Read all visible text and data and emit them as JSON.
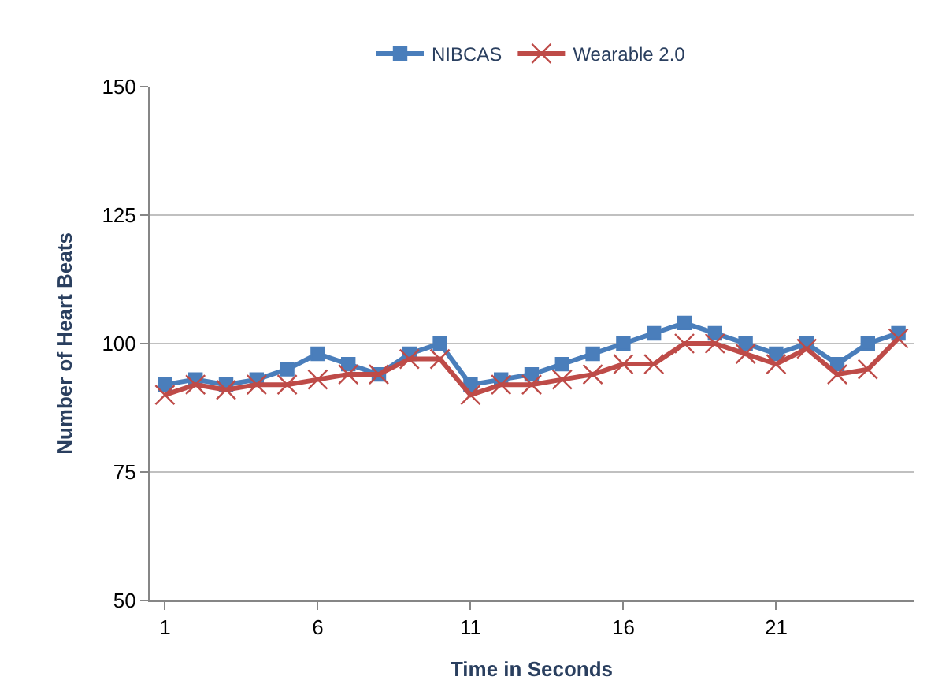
{
  "chart_data": {
    "type": "line",
    "xlabel": "Time in Seconds",
    "ylabel": "Number of Heart Beats",
    "x": [
      1,
      2,
      3,
      4,
      5,
      6,
      7,
      8,
      9,
      10,
      11,
      12,
      13,
      14,
      15,
      16,
      17,
      18,
      19,
      20,
      21,
      22,
      23,
      24,
      25
    ],
    "series": [
      {
        "name": "NIBCAS",
        "color": "#4a7ebb",
        "marker": "square",
        "values": [
          92,
          93,
          92,
          93,
          95,
          98,
          96,
          94,
          98,
          100,
          92,
          93,
          94,
          96,
          98,
          100,
          102,
          104,
          102,
          100,
          98,
          100,
          96,
          100,
          102
        ]
      },
      {
        "name": "Wearable 2.0",
        "color": "#be4b48",
        "marker": "cross",
        "values": [
          90,
          92,
          91,
          92,
          92,
          93,
          94,
          94,
          97,
          97,
          90,
          92,
          92,
          93,
          94,
          96,
          96,
          100,
          100,
          98,
          96,
          99,
          94,
          95,
          101
        ]
      }
    ],
    "xlim": [
      0.5,
      25.5
    ],
    "xticks": [
      1,
      6,
      11,
      16,
      21
    ],
    "ylim": [
      50,
      150
    ],
    "yticks": [
      50,
      75,
      100,
      125,
      150
    ],
    "grid": "y",
    "legend": "top"
  }
}
